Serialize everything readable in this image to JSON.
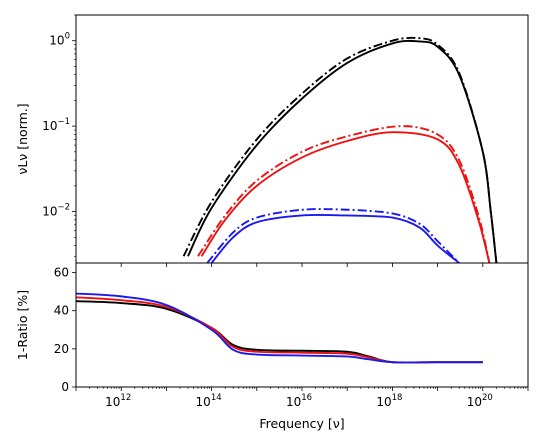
{
  "figure": {
    "xlabel": "Frequency [ν]",
    "x_tick_base": "10",
    "x_tick_exponents": [
      "12",
      "14",
      "16",
      "18",
      "20"
    ],
    "top_ylabel": "νLν [norm.]",
    "top_y_tick_base": "10",
    "top_y_tick_exponents": [
      "0",
      "−1",
      "−2"
    ],
    "bottom_ylabel": "1-Ratio [%]",
    "bottom_y_ticks": [
      "0",
      "20",
      "40",
      "60"
    ]
  },
  "colors": {
    "black": "#000000",
    "red": "#ee1111",
    "blue": "#1a1aee"
  },
  "chart_data": [
    {
      "type": "line",
      "title": "",
      "xlabel": "",
      "ylabel": "νLν [norm.]",
      "xscale": "log",
      "yscale": "log",
      "xlim": [
        100000000000.0,
        1e+21
      ],
      "ylim": [
        0.0025,
        2
      ],
      "grid": false,
      "legend": "none",
      "series": [
        {
          "color": "black",
          "style": "solid",
          "x": [
            30000000000000.0,
            100000000000000.0,
            1000000000000000.0,
            1e+16,
            1e+17,
            1e+18,
            4e+18,
            1e+19,
            3e+19,
            1e+20,
            1.5e+20,
            2e+20
          ],
          "y": [
            0.003,
            0.011,
            0.06,
            0.21,
            0.55,
            0.93,
            0.98,
            0.85,
            0.4,
            0.05,
            0.01,
            0.0025
          ]
        },
        {
          "color": "black",
          "style": "dashdot",
          "x": [
            24000000000000.0,
            100000000000000.0,
            1000000000000000.0,
            1e+16,
            1e+17,
            1e+18,
            4e+18,
            1e+19,
            3e+19,
            1e+20,
            1.5e+20,
            2e+20
          ],
          "y": [
            0.003,
            0.013,
            0.07,
            0.24,
            0.62,
            1.0,
            1.07,
            0.9,
            0.42,
            0.05,
            0.01,
            0.0025
          ]
        },
        {
          "color": "red",
          "style": "solid",
          "x": [
            60000000000000.0,
            200000000000000.0,
            1000000000000000.0,
            1e+16,
            1e+17,
            1e+18,
            1e+19,
            3e+19,
            8e+19,
            1.4e+20
          ],
          "y": [
            0.003,
            0.008,
            0.02,
            0.043,
            0.067,
            0.085,
            0.07,
            0.035,
            0.008,
            0.0025
          ]
        },
        {
          "color": "red",
          "style": "dashdot",
          "x": [
            50000000000000.0,
            200000000000000.0,
            1000000000000000.0,
            1e+16,
            1e+17,
            1.5e+18,
            1e+19,
            3e+19,
            8e+19,
            1.4e+20
          ],
          "y": [
            0.003,
            0.009,
            0.023,
            0.05,
            0.076,
            0.1,
            0.08,
            0.04,
            0.009,
            0.0025
          ]
        },
        {
          "color": "blue",
          "style": "solid",
          "x": [
            100000000000000.0,
            300000000000000.0,
            1000000000000000.0,
            1e+16,
            1e+17,
            1e+18,
            4e+18,
            1e+19,
            3e+19
          ],
          "y": [
            0.0025,
            0.005,
            0.0075,
            0.009,
            0.009,
            0.0085,
            0.0065,
            0.004,
            0.0025
          ]
        },
        {
          "color": "blue",
          "style": "dashdot",
          "x": [
            80000000000000.0,
            300000000000000.0,
            1000000000000000.0,
            1e+16,
            1e+17,
            1e+18,
            4e+18,
            1e+19,
            3e+19
          ],
          "y": [
            0.0025,
            0.0057,
            0.0085,
            0.0105,
            0.0105,
            0.0095,
            0.0072,
            0.0045,
            0.0025
          ]
        }
      ]
    },
    {
      "type": "line",
      "title": "",
      "xlabel": "Frequency [ν]",
      "ylabel": "1-Ratio [%]",
      "xscale": "log",
      "yscale": "linear",
      "xlim": [
        100000000000.0,
        1e+21
      ],
      "ylim": [
        0,
        65
      ],
      "grid": false,
      "legend": "none",
      "series": [
        {
          "color": "black",
          "style": "solid",
          "x": [
            100000000000.0,
            1000000000000.0,
            10000000000000.0,
            100000000000000.0,
            300000000000000.0,
            1000000000000000.0,
            1e+16,
            1e+17,
            3e+17,
            1e+18,
            1e+19,
            1e+20
          ],
          "y": [
            45,
            44,
            41,
            31,
            22,
            19.5,
            19,
            18.5,
            16,
            13,
            13,
            13
          ]
        },
        {
          "color": "red",
          "style": "solid",
          "x": [
            100000000000.0,
            1000000000000.0,
            10000000000000.0,
            100000000000000.0,
            300000000000000.0,
            1000000000000000.0,
            1e+16,
            1e+17,
            3e+17,
            1e+18,
            1e+19,
            1e+20
          ],
          "y": [
            47,
            45.5,
            42,
            31,
            21,
            18.5,
            18,
            17.5,
            15.5,
            13,
            13,
            13
          ]
        },
        {
          "color": "blue",
          "style": "solid",
          "x": [
            100000000000.0,
            1000000000000.0,
            10000000000000.0,
            100000000000000.0,
            300000000000000.0,
            1000000000000000.0,
            1e+16,
            1e+17,
            3e+17,
            1e+18,
            1e+19,
            1e+20
          ],
          "y": [
            49,
            47.5,
            43,
            30,
            19.5,
            17,
            16.5,
            16,
            14.5,
            13,
            13,
            13
          ]
        }
      ]
    }
  ]
}
